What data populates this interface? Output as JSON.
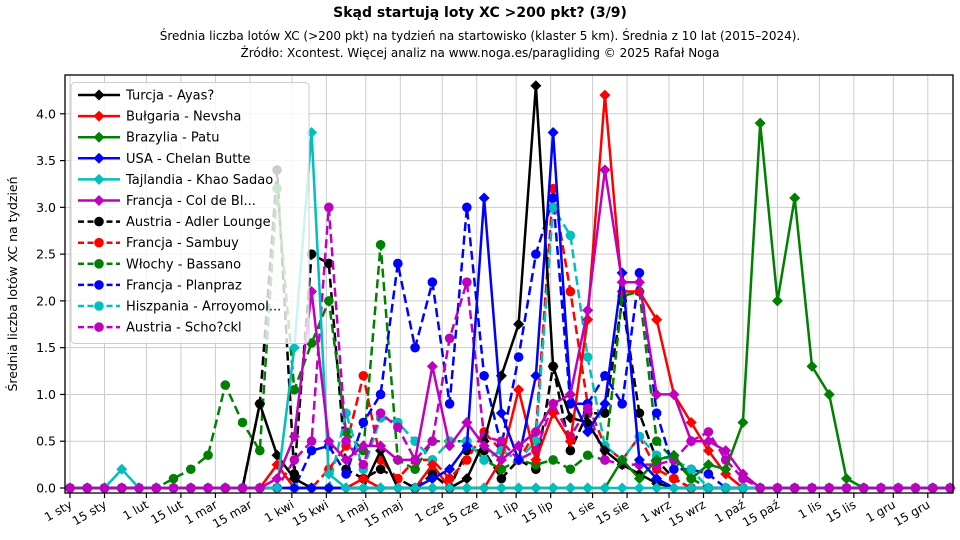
{
  "header": {
    "title": "Skąd startują loty XC >200 pkt? (3/9)",
    "subtitle": "Średnia liczba lotów XC (>200 pkt) na tydzień na startowisko (klaster 5 km). Średnia z 10 lat (2015–2024).",
    "source": "Źródło: Xcontest. Więcej analiz na www.noga.es/paragliding © 2025 Rafał Noga"
  },
  "chart_data": {
    "type": "line",
    "title": "Skąd startują loty XC >200 pkt? (3/9)",
    "xlabel": "",
    "ylabel": "Średnia liczba lotów XC na tydzień",
    "grid": true,
    "legend_position": "upper-left",
    "x_points": "52 weekly values per series, week i = day 7*i of the year",
    "ylim": [
      0,
      4.41
    ],
    "ytick_labels": [
      "0.0",
      "0.5",
      "1.0",
      "1.5",
      "2.0",
      "2.5",
      "3.0",
      "3.5",
      "4.0"
    ],
    "xticks": [
      {
        "label": "1 sty",
        "day": 0
      },
      {
        "label": "15 sty",
        "day": 14
      },
      {
        "label": "1 lut",
        "day": 31
      },
      {
        "label": "15 lut",
        "day": 45
      },
      {
        "label": "1 mar",
        "day": 59
      },
      {
        "label": "15 mar",
        "day": 73
      },
      {
        "label": "1 kwi",
        "day": 90
      },
      {
        "label": "15 kwi",
        "day": 104
      },
      {
        "label": "1 maj",
        "day": 120
      },
      {
        "label": "15 maj",
        "day": 134
      },
      {
        "label": "1 cze",
        "day": 151
      },
      {
        "label": "15 cze",
        "day": 165
      },
      {
        "label": "1 lip",
        "day": 181
      },
      {
        "label": "15 lip",
        "day": 195
      },
      {
        "label": "1 sie",
        "day": 212
      },
      {
        "label": "15 sie",
        "day": 226
      },
      {
        "label": "1 wrz",
        "day": 243
      },
      {
        "label": "15 wrz",
        "day": 257
      },
      {
        "label": "1 paź",
        "day": 273
      },
      {
        "label": "15 paź",
        "day": 287
      },
      {
        "label": "1 lis",
        "day": 304
      },
      {
        "label": "15 lis",
        "day": 318
      },
      {
        "label": "1 gru",
        "day": 334
      },
      {
        "label": "15 gru",
        "day": 348
      }
    ],
    "series": [
      {
        "name": "Turcja - Ayas?",
        "color": "#000000",
        "linestyle": "solid",
        "marker": "diamond",
        "values": [
          0,
          0,
          0,
          0,
          0,
          0,
          0,
          0,
          0,
          0,
          0,
          0.9,
          0.35,
          0.1,
          0,
          0,
          0,
          0,
          0.4,
          0,
          0,
          0,
          0,
          0.1,
          0.5,
          1.2,
          1.75,
          4.3,
          1.3,
          0.75,
          0.7,
          0.4,
          0.25,
          0.15,
          0.05,
          0,
          0,
          0,
          0,
          0,
          0,
          0,
          0,
          0,
          0,
          0,
          0,
          0,
          0,
          0,
          0,
          0
        ]
      },
      {
        "name": "Bułgaria - Nevsha",
        "color": "#ff0000",
        "linestyle": "solid",
        "marker": "diamond",
        "values": [
          0,
          0,
          0,
          0,
          0,
          0,
          0,
          0,
          0,
          0,
          0,
          0,
          0.25,
          0,
          0,
          0,
          0,
          0.1,
          0,
          0,
          0,
          0.25,
          0,
          0,
          0,
          0.3,
          1.05,
          0.3,
          0.8,
          0.5,
          1.8,
          4.2,
          2.1,
          2.1,
          1.8,
          1.0,
          0.7,
          0.4,
          0.15,
          0,
          0,
          0,
          0,
          0,
          0,
          0,
          0,
          0,
          0,
          0,
          0,
          0
        ]
      },
      {
        "name": "Brazylia - Patu",
        "color": "#008000",
        "linestyle": "solid",
        "marker": "diamond",
        "values": [
          0,
          0,
          0,
          0,
          0,
          0,
          0,
          0,
          0,
          0,
          0,
          0,
          0,
          0,
          0,
          0,
          0,
          0,
          0,
          0,
          0,
          0,
          0,
          0,
          0,
          0,
          0,
          0,
          0,
          0,
          0,
          0,
          0.3,
          0.1,
          0.3,
          0.35,
          0.1,
          0.25,
          0.2,
          0.7,
          3.9,
          2.0,
          3.1,
          1.3,
          1.0,
          0.1,
          0,
          0,
          0,
          0,
          0,
          0
        ]
      },
      {
        "name": "USA - Chelan Butte",
        "color": "#0000ff",
        "linestyle": "solid",
        "marker": "diamond",
        "values": [
          0,
          0,
          0,
          0,
          0,
          0,
          0,
          0,
          0,
          0,
          0,
          0,
          0,
          0,
          0,
          0,
          0,
          0,
          0,
          0,
          0,
          0.1,
          0.2,
          0.45,
          3.1,
          0.8,
          0.3,
          1.2,
          3.8,
          1.0,
          0.6,
          0.9,
          2.3,
          0.3,
          0.1,
          0,
          0,
          0,
          0,
          0,
          0,
          0,
          0,
          0,
          0,
          0,
          0,
          0,
          0,
          0,
          0,
          0
        ]
      },
      {
        "name": "Tajlandia - Khao Sadao",
        "color": "#00bfbf",
        "linestyle": "solid",
        "marker": "diamond",
        "values": [
          0,
          0,
          0,
          0.2,
          0,
          0,
          0,
          0,
          0,
          0,
          0,
          0,
          0,
          1.5,
          3.8,
          0.15,
          0,
          0,
          0,
          0,
          0,
          0,
          0,
          0,
          0,
          0,
          0,
          0,
          0,
          0,
          0,
          0,
          0,
          0,
          0,
          0,
          0,
          0,
          0,
          0,
          0,
          0,
          0,
          0,
          0,
          0,
          0,
          0,
          0,
          0,
          0,
          0
        ]
      },
      {
        "name": "Francja - Col de Bl...",
        "color": "#bf00bf",
        "linestyle": "solid",
        "marker": "diamond",
        "values": [
          0,
          0,
          0,
          0,
          0,
          0,
          0,
          0,
          0,
          0,
          0,
          0,
          0.1,
          0.55,
          2.1,
          0.5,
          0.3,
          0.45,
          0.45,
          0.3,
          0.3,
          1.3,
          0.45,
          0.7,
          0.45,
          0.3,
          0.45,
          0.6,
          0.9,
          1.0,
          1.9,
          3.4,
          2.2,
          2.2,
          1.0,
          1.0,
          0.5,
          0.5,
          0.4,
          0.15,
          0,
          0,
          0,
          0,
          0,
          0,
          0,
          0,
          0,
          0,
          0,
          0
        ]
      },
      {
        "name": "Austria - Adler Lounge",
        "color": "#000000",
        "linestyle": "dashed",
        "marker": "circle",
        "values": [
          0,
          0,
          0,
          0,
          0,
          0,
          0,
          0,
          0,
          0,
          0,
          0.9,
          3.4,
          0.15,
          2.5,
          2.4,
          0.2,
          0.1,
          0.2,
          0.1,
          0,
          0.15,
          0,
          0.4,
          0.4,
          0.1,
          0.3,
          0.2,
          1.3,
          0.4,
          0.8,
          0.8,
          2.0,
          0.8,
          0.3,
          0.1,
          0,
          0,
          0,
          0,
          0,
          0,
          0,
          0,
          0,
          0,
          0,
          0,
          0,
          0,
          0,
          0
        ]
      },
      {
        "name": "Francja - Sambuy",
        "color": "#ff0000",
        "linestyle": "dashed",
        "marker": "circle",
        "values": [
          0,
          0,
          0,
          0,
          0,
          0,
          0,
          0,
          0,
          0,
          0,
          0,
          0,
          0,
          0,
          0.2,
          0.45,
          1.2,
          0.3,
          0.1,
          0.3,
          0.3,
          0.1,
          0.3,
          0.6,
          0.4,
          0.3,
          0.6,
          3.2,
          2.1,
          0.9,
          0.45,
          0.3,
          0.55,
          0.2,
          0.1,
          0,
          0,
          0,
          0,
          0,
          0,
          0,
          0,
          0,
          0,
          0,
          0,
          0,
          0,
          0,
          0
        ]
      },
      {
        "name": "Włochy - Bassano",
        "color": "#008000",
        "linestyle": "dashed",
        "marker": "circle",
        "values": [
          0,
          0,
          0,
          0,
          0,
          0,
          0.1,
          0.2,
          0.35,
          1.1,
          0.7,
          0.4,
          3.2,
          1.05,
          1.55,
          2.0,
          0.6,
          0.4,
          2.6,
          0.3,
          0.2,
          0.5,
          0.5,
          0.5,
          0.3,
          0.2,
          0.3,
          0.25,
          0.3,
          0.2,
          0.35,
          0.3,
          2.05,
          2.1,
          0.5,
          0.3,
          0.1,
          0,
          0,
          0,
          0,
          0,
          0,
          0,
          0,
          0,
          0,
          0,
          0,
          0,
          0,
          0
        ]
      },
      {
        "name": "Francja - Planpraz",
        "color": "#0000ff",
        "linestyle": "dashed",
        "marker": "circle",
        "values": [
          0,
          0,
          0,
          0,
          0,
          0,
          0,
          0,
          0,
          0,
          0,
          0,
          0,
          0,
          0.4,
          0.45,
          0.15,
          0.7,
          1.0,
          2.4,
          1.5,
          2.2,
          0.9,
          3.0,
          1.2,
          0.45,
          1.4,
          2.5,
          3.1,
          0.9,
          0.9,
          1.2,
          0.9,
          2.3,
          0.8,
          0.2,
          0.2,
          0.15,
          0,
          0,
          0,
          0,
          0,
          0,
          0,
          0,
          0,
          0,
          0,
          0,
          0,
          0
        ]
      },
      {
        "name": "Hiszpania - Arroyomol...",
        "color": "#00bfbf",
        "linestyle": "dashed",
        "marker": "circle",
        "values": [
          0,
          0,
          0,
          0,
          0,
          0,
          0,
          0,
          0,
          0,
          0,
          0,
          0,
          0,
          0,
          0,
          0.8,
          0.2,
          0.75,
          0.7,
          0.5,
          0.3,
          0.5,
          0.5,
          0.3,
          0.4,
          0.3,
          0.5,
          3.0,
          2.7,
          1.4,
          0.45,
          0.3,
          0.55,
          0.35,
          0.3,
          0.2,
          0,
          0,
          0,
          0,
          0,
          0,
          0,
          0,
          0,
          0,
          0,
          0,
          0,
          0,
          0
        ]
      },
      {
        "name": "Austria - Scho?ckl",
        "color": "#bf00bf",
        "linestyle": "dashed",
        "marker": "circle",
        "values": [
          0,
          0,
          0,
          0,
          0,
          0,
          0,
          0,
          0,
          0,
          0,
          0,
          0,
          0.3,
          0.5,
          3.0,
          0.5,
          0.25,
          0.8,
          0.65,
          0.3,
          0.5,
          1.6,
          2.2,
          0.55,
          0.5,
          0.3,
          0.4,
          0.9,
          0.55,
          0.85,
          0.3,
          0.25,
          0.25,
          0.25,
          0.3,
          0.5,
          0.6,
          0.3,
          0.1,
          0,
          0,
          0,
          0,
          0,
          0,
          0,
          0,
          0,
          0,
          0,
          0
        ]
      }
    ]
  }
}
